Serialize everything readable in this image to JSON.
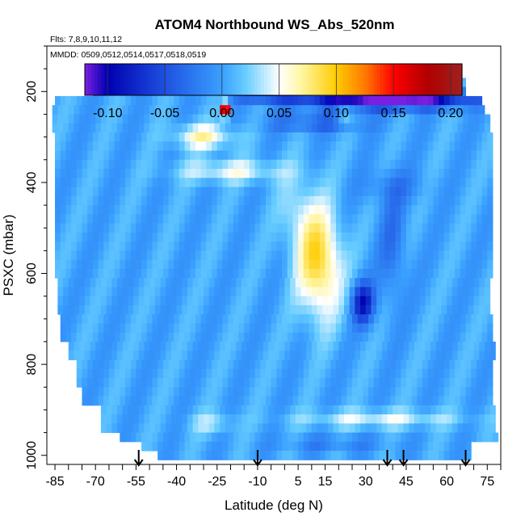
{
  "chart_data": {
    "type": "heatmap",
    "title": "ATOM4 Northbound WS_Abs_520nm",
    "subtitle_flights": "Flts: 7,8,9,10,11,12",
    "subtitle_dates": "MMDD: 0509,0512,0514,0517,0518,0519",
    "xlabel": "Latitude (deg N)",
    "ylabel": "PSXC (mbar)",
    "xlim": [
      -88,
      80
    ],
    "ylim": [
      1020,
      100
    ],
    "x_ticks": [
      -85,
      -70,
      -55,
      -40,
      -25,
      -10,
      5,
      15,
      30,
      45,
      60,
      75
    ],
    "y_ticks": [
      200,
      400,
      600,
      800,
      1000
    ],
    "colorbar": {
      "range": [
        -0.12,
        0.21
      ],
      "ticks": [
        "-0.10",
        "-0.05",
        "0.00",
        "0.05",
        "0.10",
        "0.15",
        "0.20"
      ],
      "colors": [
        "#7a1fe0",
        "#0000b0",
        "#1e50e0",
        "#3aa0ff",
        "#66ccff",
        "#ffffff",
        "#fff5a0",
        "#ffcc00",
        "#ff7a00",
        "#ff0000",
        "#b00000",
        "#a02020"
      ],
      "stops": [
        -0.12,
        -0.1,
        -0.05,
        0.0,
        0.02,
        0.05,
        0.07,
        0.1,
        0.125,
        0.15,
        0.18,
        0.21
      ]
    },
    "profile_markers_lat": [
      -54,
      -10,
      38,
      44,
      67
    ],
    "features": [
      {
        "lat": -22,
        "pres": 240,
        "value": 0.18
      },
      {
        "lat": 15,
        "pres": 580,
        "value": 0.09
      },
      {
        "lat": 30,
        "pres": 665,
        "value": -0.08
      },
      {
        "lat": 28,
        "pres": 215,
        "value": -0.1
      }
    ]
  }
}
